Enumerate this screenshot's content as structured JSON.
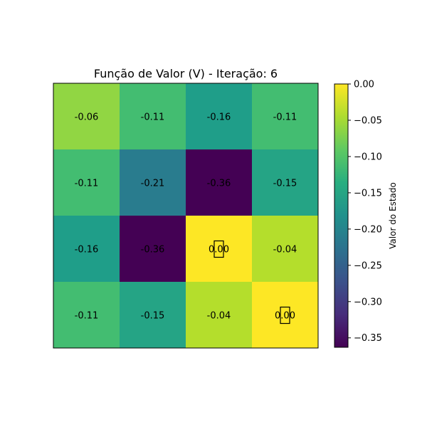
{
  "chart_data": {
    "type": "heatmap",
    "title": "Função de Valor (V) - Iteração: 6",
    "rows": 4,
    "cols": 4,
    "values": [
      [
        -0.06,
        -0.11,
        -0.16,
        -0.11
      ],
      [
        -0.11,
        -0.21,
        -0.36,
        -0.15
      ],
      [
        -0.16,
        -0.36,
        0.0,
        -0.04
      ],
      [
        -0.11,
        -0.15,
        -0.04,
        0.0
      ]
    ],
    "value_labels": [
      [
        "-0.06",
        "-0.11",
        "-0.16",
        "-0.11"
      ],
      [
        "-0.11",
        "-0.21",
        "-0.36",
        "-0.15"
      ],
      [
        "-0.16",
        "-0.36",
        "0.00",
        "-0.04"
      ],
      [
        "-0.11",
        "-0.15",
        "-0.04",
        "0.00"
      ]
    ],
    "marked_cells": [
      [
        2,
        2
      ],
      [
        3,
        3
      ]
    ],
    "colormap": "viridis",
    "vmin": -0.36,
    "vmax": 0.0,
    "colorbar": {
      "label": "Valor do Estado",
      "ticks": [
        0.0,
        -0.05,
        -0.1,
        -0.15,
        -0.2,
        -0.25,
        -0.3,
        -0.35
      ],
      "tick_labels": [
        "0.00",
        "−0.05",
        "−0.10",
        "−0.15",
        "−0.20",
        "−0.25",
        "−0.30",
        "−0.35"
      ]
    },
    "axes_visible": false,
    "grid": false
  }
}
